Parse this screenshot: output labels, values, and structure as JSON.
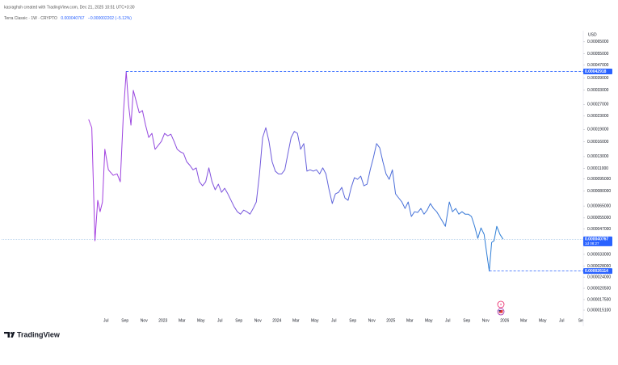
{
  "header": {
    "credit": "kasraghsh created with TradingView.com, Dec 21, 2025 10:51 UTC+3:30",
    "symbol": "Terra Classic · 1W · CRYPTO",
    "change": "−0.000002202 (−5.12%)"
  },
  "footer": {
    "brand": "TradingView"
  },
  "chart_data": {
    "type": "line",
    "currency": "USD",
    "log_scale": true,
    "ylim": [
      1.26e-05,
      0.00076
    ],
    "yticks": [
      {
        "value": 0.00065,
        "label": "0.00065000"
      },
      {
        "value": 0.00055,
        "label": "0.00055000"
      },
      {
        "value": 0.00047,
        "label": "0.00047000"
      },
      {
        "value": 0.00039,
        "label": "0.00039000"
      },
      {
        "value": 0.00033,
        "label": "0.00033000"
      },
      {
        "value": 0.00027,
        "label": "0.00027000"
      },
      {
        "value": 0.00023,
        "label": "0.00023000"
      },
      {
        "value": 0.00019,
        "label": "0.00019000"
      },
      {
        "value": 0.00016,
        "label": "0.00016000"
      },
      {
        "value": 0.00013,
        "label": "0.00013000"
      },
      {
        "value": 0.00011,
        "label": "0.00011000"
      },
      {
        "value": 9.5e-05,
        "label": "0.000095000"
      },
      {
        "value": 8e-05,
        "label": "0.000080000"
      },
      {
        "value": 6.5e-05,
        "label": "0.000065000"
      },
      {
        "value": 5.5e-05,
        "label": "0.000055000"
      },
      {
        "value": 4.7e-05,
        "label": "0.000047000"
      },
      {
        "value": 3.3e-05,
        "label": "0.000033000"
      },
      {
        "value": 2.8e-05,
        "label": "0.000028000"
      },
      {
        "value": 2.4e-05,
        "label": "0.000024000"
      },
      {
        "value": 2.05e-05,
        "label": "0.000020500"
      },
      {
        "value": 1.75e-05,
        "label": "0.000017500"
      },
      {
        "value": 1.51e-05,
        "label": "0.000015100"
      }
    ],
    "xlim": [
      "2021-08",
      "2026-09"
    ],
    "xticks": [
      {
        "value": "2022-07",
        "label": "Jul"
      },
      {
        "value": "2022-09",
        "label": "Sep"
      },
      {
        "value": "2022-11",
        "label": "Nov"
      },
      {
        "value": "2023-01",
        "label": "2023"
      },
      {
        "value": "2023-03",
        "label": "Mar"
      },
      {
        "value": "2023-05",
        "label": "May"
      },
      {
        "value": "2023-07",
        "label": "Jul"
      },
      {
        "value": "2023-09",
        "label": "Sep"
      },
      {
        "value": "2023-11",
        "label": "Nov"
      },
      {
        "value": "2024-01",
        "label": "2024"
      },
      {
        "value": "2024-03",
        "label": "Mar"
      },
      {
        "value": "2024-05",
        "label": "May"
      },
      {
        "value": "2024-07",
        "label": "Jul"
      },
      {
        "value": "2024-09",
        "label": "Sep"
      },
      {
        "value": "2024-11",
        "label": "Nov"
      },
      {
        "value": "2025-01",
        "label": "2025"
      },
      {
        "value": "2025-03",
        "label": "Mar"
      },
      {
        "value": "2025-05",
        "label": "May"
      },
      {
        "value": "2025-07",
        "label": "Jul"
      },
      {
        "value": "2025-09",
        "label": "Sep"
      },
      {
        "value": "2025-11",
        "label": "Nov"
      },
      {
        "value": "2026-01",
        "label": "2026"
      },
      {
        "value": "2026-03",
        "label": "Mar"
      },
      {
        "value": "2026-05",
        "label": "May"
      },
      {
        "value": "2026-07",
        "label": "Jul"
      },
      {
        "value": "2026-09",
        "label": "Se"
      }
    ],
    "series": [
      {
        "name": "Terra Classic",
        "gradient": [
          "#a63ee0",
          "#2b80d6"
        ],
        "x": [
          "2022-05",
          "2022-05",
          "2022-05",
          "2022-06",
          "2022-06",
          "2022-06",
          "2022-06",
          "2022-07",
          "2022-07",
          "2022-08",
          "2022-08",
          "2022-08",
          "2022-09",
          "2022-09",
          "2022-09",
          "2022-09",
          "2022-10",
          "2022-10",
          "2022-10",
          "2022-11",
          "2022-11",
          "2022-11",
          "2022-12",
          "2022-12",
          "2022-12",
          "2023-01",
          "2023-01",
          "2023-01",
          "2023-02",
          "2023-02",
          "2023-02",
          "2023-03",
          "2023-03",
          "2023-03",
          "2023-04",
          "2023-04",
          "2023-04",
          "2023-05",
          "2023-05",
          "2023-05",
          "2023-06",
          "2023-06",
          "2023-06",
          "2023-07",
          "2023-07",
          "2023-07",
          "2023-08",
          "2023-08",
          "2023-08",
          "2023-09",
          "2023-09",
          "2023-09",
          "2023-10",
          "2023-10",
          "2023-10",
          "2023-11",
          "2023-11",
          "2023-11",
          "2023-12",
          "2023-12",
          "2023-12",
          "2024-01",
          "2024-01",
          "2024-01",
          "2024-02",
          "2024-02",
          "2024-02",
          "2024-03",
          "2024-03",
          "2024-03",
          "2024-04",
          "2024-04",
          "2024-04",
          "2024-05",
          "2024-05",
          "2024-05",
          "2024-06",
          "2024-06",
          "2024-06",
          "2024-07",
          "2024-07",
          "2024-07",
          "2024-08",
          "2024-08",
          "2024-08",
          "2024-09",
          "2024-09",
          "2024-09",
          "2024-10",
          "2024-10",
          "2024-10",
          "2024-11",
          "2024-11",
          "2024-11",
          "2024-12",
          "2024-12",
          "2024-12",
          "2025-01",
          "2025-01",
          "2025-01",
          "2025-02",
          "2025-02",
          "2025-02",
          "2025-03",
          "2025-03",
          "2025-03",
          "2025-04",
          "2025-04",
          "2025-04",
          "2025-05",
          "2025-05",
          "2025-05",
          "2025-06",
          "2025-06",
          "2025-07",
          "2025-07",
          "2025-07",
          "2025-08",
          "2025-08",
          "2025-08",
          "2025-09",
          "2025-09",
          "2025-09",
          "2025-10",
          "2025-10",
          "2025-10",
          "2025-11",
          "2025-11",
          "2025-11",
          "2025-11",
          "2025-12",
          "2025-12",
          "2025-12"
        ],
        "values": [
          0.000219,
          0.000195,
          3.99e-05,
          7.04e-05,
          6e-05,
          6.88e-05,
          0.000144,
          0.000108,
          0.0001,
          0.000102,
          9.13e-05,
          0.00024,
          0.000429,
          0.000268,
          0.000202,
          0.000329,
          0.000284,
          0.00024,
          0.000248,
          0.000202,
          0.00017,
          0.00018,
          0.000144,
          0.000152,
          0.000161,
          0.00018,
          0.000174,
          0.000178,
          0.000161,
          0.000144,
          0.000139,
          0.000136,
          0.000121,
          0.000115,
          0.000108,
          0.000111,
          9.13e-05,
          8.63e-05,
          9.13e-05,
          0.000111,
          9.13e-05,
          8.16e-05,
          8.83e-05,
          7.88e-05,
          8.34e-05,
          7.71e-05,
          7.04e-05,
          6.43e-05,
          6e-05,
          5.8e-05,
          6.14e-05,
          6e-05,
          5.8e-05,
          6.28e-05,
          6.88e-05,
          0.000102,
          0.00017,
          0.000195,
          0.000161,
          0.000121,
          0.000106,
          0.000102,
          0.000102,
          0.000108,
          0.000136,
          0.00017,
          0.000185,
          0.00018,
          0.000144,
          0.000156,
          0.000106,
          0.000108,
          0.000106,
          0.000108,
          0.000102,
          0.000111,
          0.000102,
          8.16e-05,
          6.73e-05,
          7.71e-05,
          7.88e-05,
          8.44e-05,
          7.28e-05,
          7.04e-05,
          8.44e-05,
          9.67e-05,
          9.45e-05,
          9.89e-05,
          8.63e-05,
          8.83e-05,
          0.000108,
          0.000128,
          0.000156,
          0.000147,
          0.000121,
          0.000102,
          9.45e-05,
          0.000108,
          7.71e-05,
          7.28e-05,
          6.88e-05,
          6.28e-05,
          6.88e-05,
          5.61e-05,
          6e-05,
          5.94e-05,
          6.28e-05,
          5.8e-05,
          6.14e-05,
          6.73e-05,
          6.28e-05,
          6e-05,
          5.48e-05,
          4.89e-05,
          6.88e-05,
          6e-05,
          6.28e-05,
          5.8e-05,
          6e-05,
          5.8e-05,
          5.8e-05,
          5.61e-05,
          4.89e-05,
          4.13e-05,
          4.78e-05,
          4.37e-05,
          3.29e-05,
          2.61e-05,
          3.9e-05,
          3.99e-05,
          4.89e-05,
          4.37e-05,
          4.0767e-05
        ]
      }
    ],
    "levels": [
      {
        "value": 0.00042918,
        "label": "0.00042918",
        "mark": "max"
      },
      {
        "value": 2.6114e-05,
        "label": "0.000026114",
        "mark": "min"
      }
    ],
    "current_price": {
      "value": 4.0767e-05,
      "label": "0.000040767",
      "countdown": "1d 08:27"
    },
    "accent": "#2962ff"
  }
}
